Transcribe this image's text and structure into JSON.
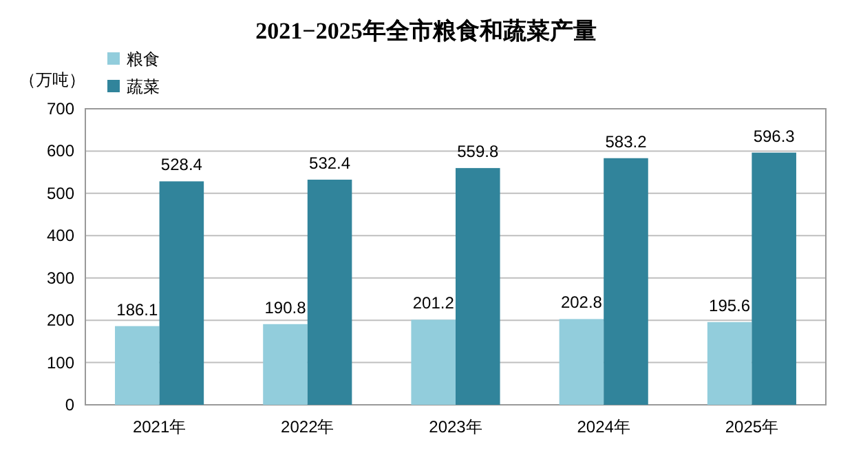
{
  "chart_data": {
    "type": "bar",
    "title": "2021−2025年全市粮食和蔬菜产量",
    "ylabel": "（万吨）",
    "categories": [
      "2021年",
      "2022年",
      "2023年",
      "2024年",
      "2025年"
    ],
    "series": [
      {
        "name": "粮食",
        "color": "#92cddc",
        "values": [
          186.1,
          190.8,
          201.2,
          202.8,
          195.6
        ]
      },
      {
        "name": "蔬菜",
        "color": "#31849b",
        "values": [
          528.4,
          532.4,
          559.8,
          583.2,
          596.3
        ]
      }
    ],
    "ylim": [
      0,
      700
    ],
    "yticks": [
      0,
      100,
      200,
      300,
      400,
      500,
      600,
      700
    ],
    "grid": "y",
    "legend": "top left",
    "data_labels": true
  }
}
